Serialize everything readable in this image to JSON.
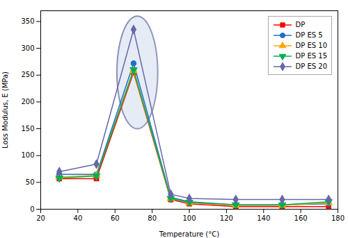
{
  "chart_data": {
    "type": "line",
    "xlabel": "Temperature (°C)",
    "ylabel": "Loss Modulus, E (MPa)",
    "xlim": [
      20,
      180
    ],
    "ylim": [
      0,
      370
    ],
    "xticks": [
      20,
      40,
      60,
      80,
      100,
      120,
      140,
      160,
      180
    ],
    "yticks": [
      0,
      50,
      100,
      150,
      200,
      250,
      300,
      350
    ],
    "x": [
      30,
      50,
      70,
      90,
      100,
      125,
      150,
      175
    ],
    "series": [
      {
        "name": "DP",
        "color": "#ff0000",
        "marker": "square",
        "values": [
          57,
          57,
          255,
          18,
          10,
          5,
          5,
          5
        ]
      },
      {
        "name": "DP ES 5",
        "color": "#1f6fc5",
        "marker": "circle",
        "values": [
          65,
          65,
          272,
          22,
          14,
          8,
          8,
          10
        ]
      },
      {
        "name": "DP ES 10",
        "color": "#ffa500",
        "marker": "triangle-up",
        "values": [
          60,
          63,
          258,
          20,
          12,
          7,
          7,
          12
        ]
      },
      {
        "name": "DP ES 15",
        "color": "#00b050",
        "marker": "triangle-down",
        "values": [
          58,
          62,
          260,
          20,
          13,
          8,
          8,
          14
        ]
      },
      {
        "name": "DP ES 20",
        "color": "#6666aa",
        "marker": "diamond",
        "values": [
          70,
          84,
          335,
          28,
          20,
          18,
          18,
          18
        ]
      }
    ],
    "highlight": {
      "shape": "ellipse",
      "x": 72,
      "y": 255,
      "width": 22,
      "height": 210,
      "color": "#c5d5e8",
      "edge_color": "#1a1a6e"
    },
    "legend": "upper right",
    "grid": false
  }
}
